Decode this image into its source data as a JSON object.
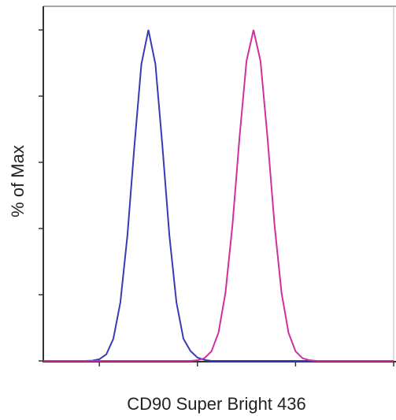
{
  "chart_data": {
    "type": "line",
    "xlabel": "CD90 Super Bright 436",
    "ylabel": "% of Max",
    "x": [
      0,
      2,
      4,
      6,
      8,
      10,
      12,
      14,
      16,
      18,
      20,
      22,
      24,
      26,
      28,
      30,
      32,
      34,
      36,
      38,
      40,
      42,
      44,
      46,
      48,
      50,
      52,
      54,
      56,
      58,
      60,
      62,
      64,
      66,
      68,
      70,
      72,
      74,
      76,
      78,
      80,
      82,
      84,
      86,
      88,
      90,
      92,
      94,
      96,
      98,
      100
    ],
    "series": [
      {
        "color": "#3a3ab4",
        "values": [
          0,
          0,
          0,
          0,
          0,
          0,
          0,
          0.1,
          0.5,
          2.0,
          6.7,
          17.7,
          37.8,
          64.9,
          89.7,
          100,
          89.7,
          64.9,
          37.8,
          17.7,
          6.7,
          3.0,
          1.0,
          0.3,
          0,
          0,
          0,
          0,
          0,
          0,
          0,
          0,
          0,
          0,
          0,
          0,
          0,
          0,
          0,
          0,
          0,
          0,
          0,
          0,
          0,
          0,
          0,
          0,
          0,
          0,
          0
        ]
      },
      {
        "color": "#d0309c",
        "values": [
          0,
          0,
          0,
          0,
          0,
          0,
          0,
          0,
          0,
          0,
          0,
          0,
          0,
          0,
          0,
          0,
          0,
          0,
          0,
          0,
          0,
          0,
          0.2,
          0.8,
          2.9,
          8.5,
          20.6,
          41.1,
          67.4,
          90.6,
          100,
          90.6,
          67.4,
          41.1,
          20.6,
          8.5,
          2.9,
          0.8,
          0.2,
          0,
          0,
          0,
          0,
          0,
          0,
          0,
          0,
          0,
          0,
          0,
          0
        ]
      }
    ],
    "xlim": [
      0,
      100
    ],
    "ylim": [
      0,
      100
    ],
    "xticks": [
      16,
      44,
      72,
      100
    ],
    "yticks": [
      0,
      20,
      40,
      60,
      80,
      100
    ]
  }
}
